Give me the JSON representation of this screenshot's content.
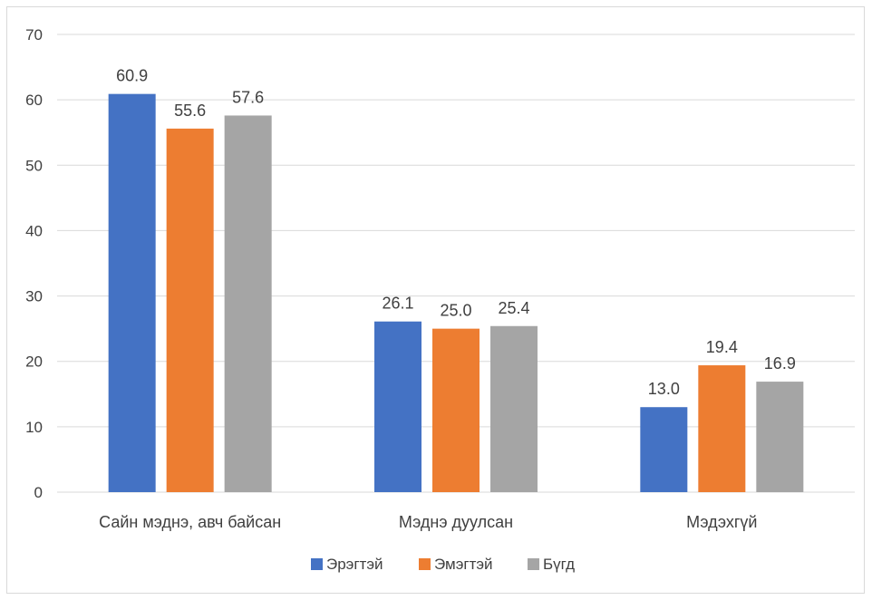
{
  "chart_data": {
    "type": "bar",
    "title": "",
    "xlabel": "",
    "ylabel": "",
    "ylim": [
      0,
      70
    ],
    "yticks": [
      0,
      10,
      20,
      30,
      40,
      50,
      60,
      70
    ],
    "categories": [
      "Сайн мэднэ, авч байсан",
      "Мэднэ дуулсан",
      "Мэдэхгүй"
    ],
    "series": [
      {
        "name": "Эрэгтэй",
        "color": "#4472C4",
        "values": [
          60.9,
          26.1,
          13.0
        ],
        "labels": [
          "60.9",
          "26.1",
          "13.0"
        ]
      },
      {
        "name": "Эмэгтэй",
        "color": "#ED7D31",
        "values": [
          55.6,
          25.0,
          19.4
        ],
        "labels": [
          "55.6",
          "25.0",
          "19.4"
        ]
      },
      {
        "name": "Бүгд",
        "color": "#A5A5A5",
        "values": [
          57.6,
          25.4,
          16.9
        ],
        "labels": [
          "57.6",
          "25.4",
          "16.9"
        ]
      }
    ],
    "grid": true,
    "legend_position": "bottom"
  }
}
